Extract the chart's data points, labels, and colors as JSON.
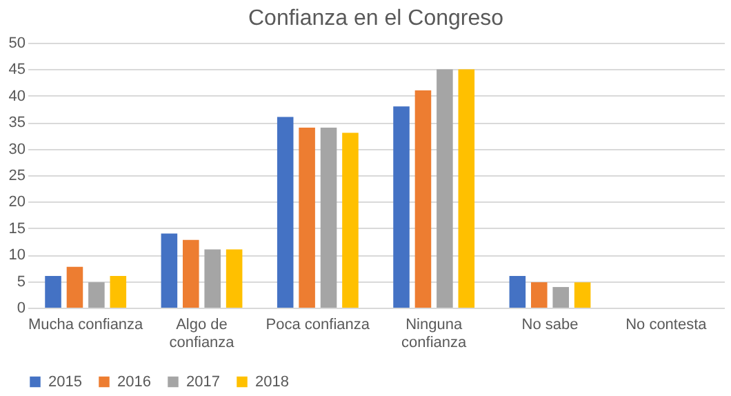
{
  "chart_data": {
    "type": "bar",
    "title": "Confianza en el Congreso",
    "categories": [
      "Mucha confianza",
      "Algo de confianza",
      "Poca confianza",
      "Ninguna confianza",
      "No sabe",
      "No contesta"
    ],
    "series": [
      {
        "name": "2015",
        "color": "#4472c4",
        "values": [
          6,
          14,
          36,
          38,
          6,
          null
        ]
      },
      {
        "name": "2016",
        "color": "#ed7d31",
        "values": [
          7.7,
          12.8,
          34,
          41,
          4.8,
          null
        ]
      },
      {
        "name": "2017",
        "color": "#a5a5a5",
        "values": [
          4.8,
          11,
          34,
          45,
          3.9,
          null
        ]
      },
      {
        "name": "2018",
        "color": "#ffc000",
        "values": [
          6,
          11,
          33,
          45,
          4.8,
          null
        ]
      }
    ],
    "ylim": [
      0,
      50
    ],
    "yticks": [
      0,
      5,
      10,
      15,
      20,
      25,
      30,
      35,
      40,
      45,
      50
    ],
    "grid": "y",
    "legend": "bottom"
  }
}
